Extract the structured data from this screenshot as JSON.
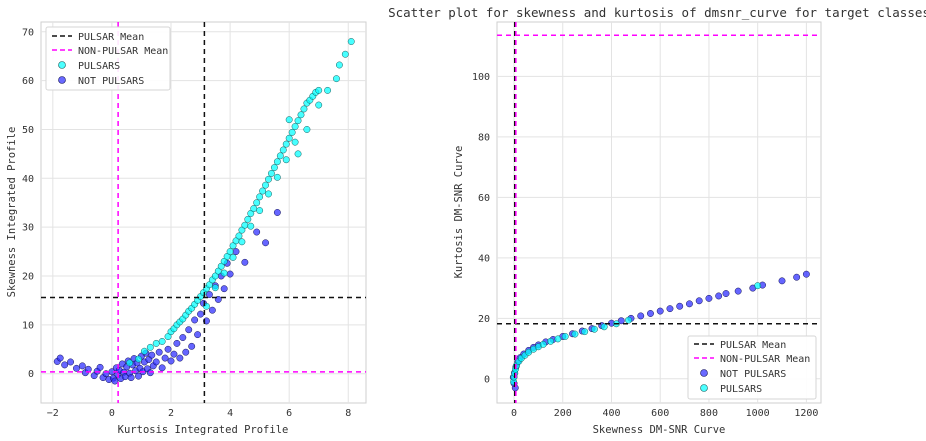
{
  "chart_data": [
    {
      "type": "scatter",
      "title": "",
      "xlabel": "Kurtosis Integrated Profile",
      "ylabel": "Skewness Integrated Profile",
      "xlim": [
        -2.4,
        8.6
      ],
      "ylim": [
        -6,
        72
      ],
      "xticks": [
        "−2",
        "0",
        "2",
        "4",
        "6",
        "8"
      ],
      "yticks": [
        "0",
        "10",
        "20",
        "30",
        "40",
        "50",
        "60",
        "70"
      ],
      "grid": true,
      "legend_position": "upper-left",
      "legend": [
        {
          "label": "PULSAR Mean",
          "kind": "line",
          "color": "#111111",
          "dash": "5,4"
        },
        {
          "label": "NON-PULSAR Mean",
          "kind": "line",
          "color": "#ff00ff",
          "dash": "5,4"
        },
        {
          "label": "PULSARS",
          "kind": "marker",
          "color": "#00ffff"
        },
        {
          "label": "NOT PULSARS",
          "kind": "marker",
          "color": "#2a2aff"
        }
      ],
      "mean_lines": {
        "pulsar": {
          "x": 3.13,
          "y": 15.6,
          "color": "#111111"
        },
        "non_pulsar": {
          "x": 0.21,
          "y": 0.38,
          "color": "#ff00ff"
        }
      },
      "series": [
        {
          "name": "NOT PULSARS",
          "color": "#2a2aff",
          "points": [
            [
              -1.85,
              2.5
            ],
            [
              -1.75,
              3.2
            ],
            [
              -1.6,
              1.8
            ],
            [
              -1.4,
              2.4
            ],
            [
              -1.2,
              1.1
            ],
            [
              -1.0,
              1.6
            ],
            [
              -0.9,
              0.2
            ],
            [
              -0.8,
              0.9
            ],
            [
              -0.6,
              -0.4
            ],
            [
              -0.5,
              0.5
            ],
            [
              -0.4,
              1.3
            ],
            [
              -0.3,
              -0.8
            ],
            [
              -0.2,
              0.0
            ],
            [
              -0.1,
              -1.2
            ],
            [
              0.0,
              0.4
            ],
            [
              0.05,
              -0.9
            ],
            [
              0.1,
              -1.5
            ],
            [
              0.15,
              1.2
            ],
            [
              0.2,
              -0.2
            ],
            [
              0.25,
              0.7
            ],
            [
              0.3,
              -1.0
            ],
            [
              0.35,
              2.0
            ],
            [
              0.4,
              0.3
            ],
            [
              0.45,
              -0.6
            ],
            [
              0.5,
              1.4
            ],
            [
              0.55,
              2.6
            ],
            [
              0.6,
              0.1
            ],
            [
              0.65,
              -0.8
            ],
            [
              0.7,
              1.8
            ],
            [
              0.75,
              3.1
            ],
            [
              0.8,
              0.6
            ],
            [
              0.85,
              2.2
            ],
            [
              0.9,
              -0.5
            ],
            [
              0.95,
              1.1
            ],
            [
              1.0,
              3.6
            ],
            [
              1.05,
              0.4
            ],
            [
              1.1,
              2.4
            ],
            [
              1.15,
              4.2
            ],
            [
              1.2,
              1.0
            ],
            [
              1.25,
              2.9
            ],
            [
              1.3,
              0.2
            ],
            [
              1.35,
              3.8
            ],
            [
              1.4,
              1.6
            ],
            [
              1.5,
              2.4
            ],
            [
              1.6,
              4.4
            ],
            [
              1.7,
              1.2
            ],
            [
              1.8,
              3.2
            ],
            [
              1.9,
              5.0
            ],
            [
              2.0,
              2.6
            ],
            [
              2.1,
              4.0
            ],
            [
              2.2,
              6.2
            ],
            [
              2.3,
              3.2
            ],
            [
              2.4,
              7.4
            ],
            [
              2.5,
              4.4
            ],
            [
              2.6,
              9.0
            ],
            [
              2.7,
              5.6
            ],
            [
              2.8,
              11.0
            ],
            [
              2.9,
              8.0
            ],
            [
              3.0,
              12.2
            ],
            [
              3.1,
              14.4
            ],
            [
              3.2,
              10.8
            ],
            [
              3.3,
              16.2
            ],
            [
              3.4,
              13.0
            ],
            [
              3.5,
              18.0
            ],
            [
              3.6,
              15.2
            ],
            [
              3.7,
              20.0
            ],
            [
              3.8,
              17.4
            ],
            [
              3.9,
              22.6
            ],
            [
              4.0,
              20.4
            ],
            [
              4.2,
              25.0
            ],
            [
              4.5,
              22.8
            ],
            [
              4.9,
              29.0
            ],
            [
              5.2,
              26.8
            ],
            [
              5.6,
              33.0
            ]
          ]
        },
        {
          "name": "PULSARS",
          "color": "#00ffff",
          "points": [
            [
              0.6,
              2.2
            ],
            [
              0.9,
              3.0
            ],
            [
              1.1,
              4.6
            ],
            [
              1.3,
              5.4
            ],
            [
              1.5,
              6.2
            ],
            [
              1.7,
              6.6
            ],
            [
              1.9,
              7.6
            ],
            [
              2.0,
              8.6
            ],
            [
              2.1,
              9.2
            ],
            [
              2.2,
              10.0
            ],
            [
              2.3,
              10.6
            ],
            [
              2.4,
              11.2
            ],
            [
              2.5,
              12.0
            ],
            [
              2.6,
              12.8
            ],
            [
              2.7,
              13.4
            ],
            [
              2.8,
              14.2
            ],
            [
              2.9,
              15.0
            ],
            [
              3.0,
              15.8
            ],
            [
              3.1,
              16.6
            ],
            [
              3.2,
              17.4
            ],
            [
              3.3,
              18.2
            ],
            [
              3.4,
              19.2
            ],
            [
              3.5,
              20.0
            ],
            [
              3.6,
              21.0
            ],
            [
              3.7,
              22.0
            ],
            [
              3.8,
              23.0
            ],
            [
              3.9,
              24.0
            ],
            [
              4.0,
              25.0
            ],
            [
              4.1,
              26.2
            ],
            [
              4.2,
              27.2
            ],
            [
              4.3,
              28.2
            ],
            [
              4.4,
              29.4
            ],
            [
              4.5,
              30.4
            ],
            [
              4.6,
              31.6
            ],
            [
              4.7,
              32.8
            ],
            [
              4.8,
              33.8
            ],
            [
              4.9,
              35.0
            ],
            [
              5.0,
              36.2
            ],
            [
              5.1,
              37.4
            ],
            [
              5.2,
              38.6
            ],
            [
              5.3,
              39.8
            ],
            [
              5.4,
              41.0
            ],
            [
              5.5,
              42.2
            ],
            [
              5.6,
              43.4
            ],
            [
              5.7,
              44.6
            ],
            [
              5.8,
              45.8
            ],
            [
              5.9,
              47.0
            ],
            [
              6.0,
              48.2
            ],
            [
              6.1,
              49.4
            ],
            [
              6.2,
              50.6
            ],
            [
              6.3,
              51.8
            ],
            [
              6.4,
              53.0
            ],
            [
              6.5,
              54.2
            ],
            [
              6.6,
              55.4
            ],
            [
              6.7,
              56.0
            ],
            [
              6.8,
              56.8
            ],
            [
              6.9,
              57.6
            ],
            [
              7.0,
              58.0
            ],
            [
              3.2,
              13.8
            ],
            [
              3.5,
              17.6
            ],
            [
              3.8,
              20.6
            ],
            [
              4.1,
              23.8
            ],
            [
              4.4,
              27.0
            ],
            [
              4.7,
              30.2
            ],
            [
              5.0,
              33.4
            ],
            [
              5.3,
              36.8
            ],
            [
              5.6,
              40.2
            ],
            [
              5.9,
              43.8
            ],
            [
              6.2,
              47.4
            ],
            [
              6.0,
              52.0
            ],
            [
              6.3,
              45.0
            ],
            [
              6.6,
              50.0
            ],
            [
              7.0,
              55.0
            ],
            [
              7.3,
              58.0
            ],
            [
              7.6,
              60.4
            ],
            [
              7.7,
              63.2
            ],
            [
              7.9,
              65.4
            ],
            [
              8.1,
              68.0
            ]
          ]
        }
      ]
    },
    {
      "type": "scatter",
      "title": "Scatter plot for skewness and kurtosis of dmsnr_curve for target classes",
      "xlabel": "Skewness DM-SNR Curve",
      "ylabel": "Kurtosis DM-SNR Curve",
      "xlim": [
        -70,
        1260
      ],
      "ylim": [
        -8,
        118
      ],
      "xticks": [
        "0",
        "200",
        "400",
        "600",
        "800",
        "1000",
        "1200"
      ],
      "yticks": [
        "0",
        "20",
        "40",
        "60",
        "80",
        "100"
      ],
      "grid": true,
      "legend_position": "lower-right",
      "legend": [
        {
          "label": "PULSAR Mean",
          "kind": "line",
          "color": "#111111",
          "dash": "5,4"
        },
        {
          "label": "NON-PULSAR Mean",
          "kind": "line",
          "color": "#ff00ff",
          "dash": "5,4"
        },
        {
          "label": "NOT PULSARS",
          "kind": "marker",
          "color": "#2a2aff"
        },
        {
          "label": "PULSARS",
          "kind": "marker",
          "color": "#00ffff"
        }
      ],
      "mean_lines": {
        "pulsar": {
          "x": 2.76,
          "y": 18.2,
          "color": "#111111"
        },
        "non_pulsar": {
          "x": 7.4,
          "y": 113.6,
          "color": "#ff00ff"
        }
      },
      "series": [
        {
          "name": "NOT PULSARS",
          "color": "#2a2aff",
          "points": [
            [
              5,
              -3.0
            ],
            [
              0,
              -1.5
            ],
            [
              -3,
              0.5
            ],
            [
              2,
              2.0
            ],
            [
              8,
              4.0
            ],
            [
              15,
              5.6
            ],
            [
              25,
              7.0
            ],
            [
              40,
              8.2
            ],
            [
              60,
              9.4
            ],
            [
              80,
              10.4
            ],
            [
              100,
              11.2
            ],
            [
              130,
              12.2
            ],
            [
              160,
              13.0
            ],
            [
              200,
              14.0
            ],
            [
              240,
              14.9
            ],
            [
              280,
              15.8
            ],
            [
              320,
              16.6
            ],
            [
              360,
              17.6
            ],
            [
              400,
              18.4
            ],
            [
              440,
              19.2
            ],
            [
              480,
              20.0
            ],
            [
              520,
              20.8
            ],
            [
              560,
              21.6
            ],
            [
              600,
              22.4
            ],
            [
              640,
              23.2
            ],
            [
              680,
              24.0
            ],
            [
              720,
              24.8
            ],
            [
              760,
              25.8
            ],
            [
              800,
              26.6
            ],
            [
              840,
              27.4
            ],
            [
              870,
              28.2
            ],
            [
              920,
              29.0
            ],
            [
              980,
              30.0
            ],
            [
              1020,
              31.0
            ],
            [
              1100,
              32.4
            ],
            [
              1160,
              33.6
            ],
            [
              1200,
              34.6
            ]
          ]
        },
        {
          "name": "PULSARS",
          "color": "#00ffff",
          "points": [
            [
              -2,
              -1.0
            ],
            [
              0,
              0.6
            ],
            [
              3,
              1.8
            ],
            [
              6,
              3.2
            ],
            [
              10,
              4.4
            ],
            [
              20,
              5.8
            ],
            [
              30,
              6.8
            ],
            [
              45,
              7.8
            ],
            [
              60,
              8.8
            ],
            [
              80,
              9.8
            ],
            [
              100,
              10.6
            ],
            [
              120,
              11.4
            ],
            [
              150,
              12.4
            ],
            [
              180,
              13.2
            ],
            [
              210,
              14.0
            ],
            [
              250,
              14.8
            ],
            [
              290,
              15.6
            ],
            [
              330,
              16.4
            ],
            [
              370,
              17.2
            ],
            [
              420,
              18.2
            ],
            [
              470,
              19.4
            ],
            [
              1000,
              30.8
            ]
          ]
        }
      ]
    }
  ]
}
